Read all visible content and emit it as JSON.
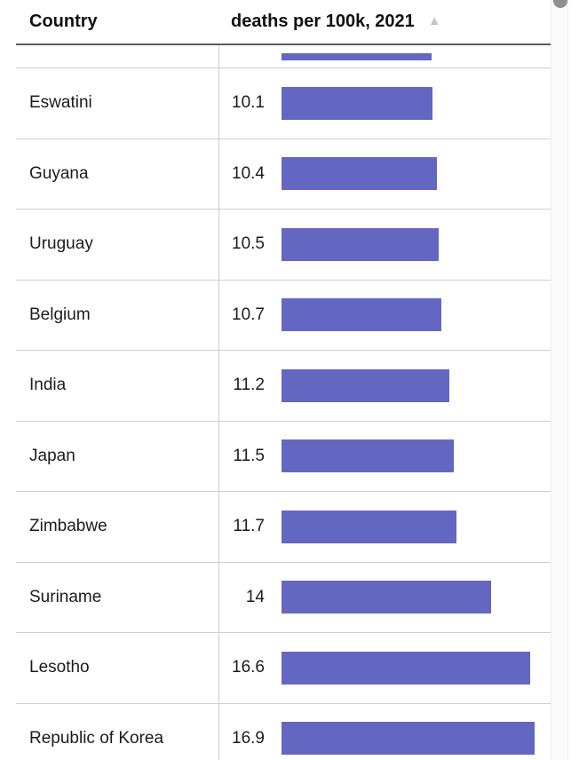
{
  "header": {
    "country_label": "Country",
    "value_label": "deaths per 100k, 2021",
    "sort_icon": "ascending-triangle",
    "sort_glyph": "▲"
  },
  "colors": {
    "bar": "#6467c1",
    "header_rule": "#5a5a5a",
    "row_divider": "#cfcfcf",
    "column_divider": "#cccccc",
    "text": "#1c1c1c",
    "header_text": "#111111",
    "sort_icon": "#c5c5c5",
    "scrollbar_thumb": "#8f8f8f",
    "scrollbar_track": "#fbfbfb"
  },
  "chart_data": {
    "type": "bar",
    "orientation": "horizontal",
    "title": "deaths per 100k, 2021",
    "sort_order": "ascending",
    "legend": "none",
    "grid": "off",
    "xlim": [
      0,
      18
    ],
    "categories": [
      "Eswatini",
      "Guyana",
      "Uruguay",
      "Belgium",
      "India",
      "Japan",
      "Zimbabwe",
      "Suriname",
      "Lesotho",
      "Republic of Korea"
    ],
    "values": [
      10.1,
      10.4,
      10.5,
      10.7,
      11.2,
      11.5,
      11.7,
      14,
      16.6,
      16.9
    ],
    "value_labels": [
      "10.1",
      "10.4",
      "10.5",
      "10.7",
      "11.2",
      "11.5",
      "11.7",
      "14",
      "16.6",
      "16.9"
    ],
    "clipped_row_above": {
      "bar_value": 10,
      "label_visible": false
    }
  },
  "rows": [
    {
      "country": "Eswatini",
      "value": "10.1",
      "numeric": 10.1
    },
    {
      "country": "Guyana",
      "value": "10.4",
      "numeric": 10.4
    },
    {
      "country": "Uruguay",
      "value": "10.5",
      "numeric": 10.5
    },
    {
      "country": "Belgium",
      "value": "10.7",
      "numeric": 10.7
    },
    {
      "country": "India",
      "value": "11.2",
      "numeric": 11.2
    },
    {
      "country": "Japan",
      "value": "11.5",
      "numeric": 11.5
    },
    {
      "country": "Zimbabwe",
      "value": "11.7",
      "numeric": 11.7
    },
    {
      "country": "Suriname",
      "value": "14",
      "numeric": 14
    },
    {
      "country": "Lesotho",
      "value": "16.6",
      "numeric": 16.6
    },
    {
      "country": "Republic of Korea",
      "value": "16.9",
      "numeric": 16.9
    }
  ]
}
